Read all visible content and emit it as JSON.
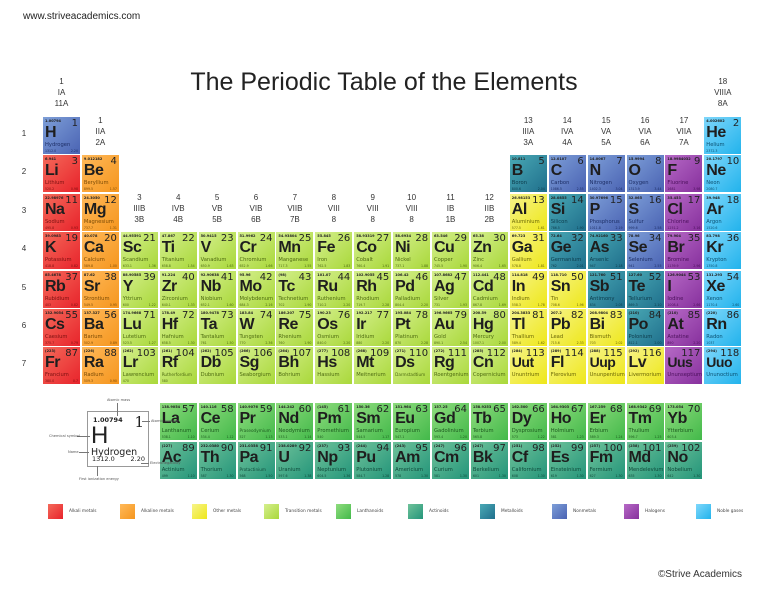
{
  "site": "www.striveacademics.com",
  "title": "The Periodic Table of the Elements",
  "copyright": "©Strive Academics",
  "groups": [
    {
      "col": 1,
      "row": 0,
      "lines": [
        "1",
        "IA",
        "11A"
      ]
    },
    {
      "col": 2,
      "row": 1,
      "lines": [
        "1",
        "IIA",
        "2A"
      ]
    },
    {
      "col": 3,
      "row": 3,
      "lines": [
        "3",
        "IIIB",
        "3B"
      ]
    },
    {
      "col": 4,
      "row": 3,
      "lines": [
        "4",
        "IVB",
        "4B"
      ]
    },
    {
      "col": 5,
      "row": 3,
      "lines": [
        "5",
        "VB",
        "5B"
      ]
    },
    {
      "col": 6,
      "row": 3,
      "lines": [
        "6",
        "VIB",
        "6B"
      ]
    },
    {
      "col": 7,
      "row": 3,
      "lines": [
        "7",
        "VIIB",
        "7B"
      ]
    },
    {
      "col": 8,
      "row": 3,
      "lines": [
        "8",
        "VIII",
        "8"
      ]
    },
    {
      "col": 9,
      "row": 3,
      "lines": [
        "9",
        "VIII",
        "8"
      ]
    },
    {
      "col": 10,
      "row": 3,
      "lines": [
        "10",
        "VIII",
        "8"
      ]
    },
    {
      "col": 11,
      "row": 3,
      "lines": [
        "11",
        "IB",
        "1B"
      ]
    },
    {
      "col": 12,
      "row": 3,
      "lines": [
        "12",
        "IIB",
        "2B"
      ]
    },
    {
      "col": 13,
      "row": 1,
      "lines": [
        "13",
        "IIIA",
        "3A"
      ]
    },
    {
      "col": 14,
      "row": 1,
      "lines": [
        "14",
        "IVA",
        "4A"
      ]
    },
    {
      "col": 15,
      "row": 1,
      "lines": [
        "15",
        "VA",
        "5A"
      ]
    },
    {
      "col": 16,
      "row": 1,
      "lines": [
        "16",
        "VIA",
        "6A"
      ]
    },
    {
      "col": 17,
      "row": 1,
      "lines": [
        "17",
        "VIIA",
        "7A"
      ]
    },
    {
      "col": 18,
      "row": 0,
      "lines": [
        "18",
        "VIIIA",
        "8A"
      ]
    }
  ],
  "periods": [
    "1",
    "2",
    "3",
    "4",
    "5",
    "6",
    "7"
  ],
  "key": {
    "mass": "1.00794",
    "number": "1",
    "symbol": "H",
    "name": "Hydrogen",
    "ionization": "1312.0",
    "electronegativity": "2.20",
    "labels": {
      "mass": "Atomic mass",
      "number": "Atomic number",
      "symbol": "Chemical symbol",
      "name": "Name",
      "electronegativity": "Electronegativity",
      "ionization": "First ionization energy"
    }
  },
  "legend": [
    {
      "cat": "alkali",
      "label": "Alkali metals"
    },
    {
      "cat": "alkaline",
      "label": "Alkaline metals"
    },
    {
      "cat": "other",
      "label": "Other metals"
    },
    {
      "cat": "transition",
      "label": "Transition metals"
    },
    {
      "cat": "lanth",
      "label": "Lanthanoids"
    },
    {
      "cat": "actin",
      "label": "Actinoids"
    },
    {
      "cat": "metalloid",
      "label": "Metalloids"
    },
    {
      "cat": "nonmetal",
      "label": "Nonmetals"
    },
    {
      "cat": "halogen",
      "label": "Halogens"
    },
    {
      "cat": "noble",
      "label": "Noble gases"
    }
  ],
  "elements": [
    [
      "H",
      "Hydrogen",
      "1.00794",
      1,
      1,
      1,
      "nonmetal",
      "1312.0",
      "2.20"
    ],
    [
      "He",
      "Helium",
      "4.002602",
      2,
      18,
      1,
      "noble",
      "2372.3",
      ""
    ],
    [
      "Li",
      "Lithium",
      "6.941",
      3,
      1,
      2,
      "alkali",
      "520.2",
      "0.98"
    ],
    [
      "Be",
      "Beryllium",
      "9.012182",
      4,
      2,
      2,
      "alkaline",
      "899.5",
      "1.57"
    ],
    [
      "B",
      "Boron",
      "10.811",
      5,
      13,
      2,
      "metalloid",
      "800.6",
      "2.04"
    ],
    [
      "C",
      "Carbon",
      "12.0107",
      6,
      14,
      2,
      "nonmetal",
      "1086.5",
      "2.55"
    ],
    [
      "N",
      "Nitrogen",
      "14.0067",
      7,
      15,
      2,
      "nonmetal",
      "1402.3",
      "3.04"
    ],
    [
      "O",
      "Oxygen",
      "15.9994",
      8,
      16,
      2,
      "nonmetal",
      "1313.9",
      "3.44"
    ],
    [
      "F",
      "Fluorine",
      "18.9984032",
      9,
      17,
      2,
      "halogen",
      "1681",
      "3.98"
    ],
    [
      "Ne",
      "Neon",
      "20.1797",
      10,
      18,
      2,
      "noble",
      "2080.7",
      ""
    ],
    [
      "Na",
      "Sodium",
      "22.98976",
      11,
      1,
      3,
      "alkali",
      "495.8",
      "0.93"
    ],
    [
      "Mg",
      "Magnesium",
      "24.3050",
      12,
      2,
      3,
      "alkaline",
      "737.7",
      "1.31"
    ],
    [
      "Al",
      "Aluminium",
      "26.98153",
      13,
      13,
      3,
      "other",
      "577.5",
      "1.61"
    ],
    [
      "Si",
      "Silicon",
      "28.0855",
      14,
      14,
      3,
      "metalloid",
      "786.5",
      "1.90"
    ],
    [
      "P",
      "Phosphorus",
      "30.97696",
      15,
      15,
      3,
      "nonmetal",
      "1011.8",
      "2.19"
    ],
    [
      "S",
      "Sulfur",
      "32.065",
      16,
      16,
      3,
      "nonmetal",
      "999.6",
      "2.58"
    ],
    [
      "Cl",
      "Chlorine",
      "35.453",
      17,
      17,
      3,
      "halogen",
      "1251.2",
      "3.16"
    ],
    [
      "Ar",
      "Argon",
      "39.948",
      18,
      18,
      3,
      "noble",
      "1520.6",
      ""
    ],
    [
      "K",
      "Potassium",
      "39.0983",
      19,
      1,
      4,
      "alkali",
      "418.8",
      "0.82"
    ],
    [
      "Ca",
      "Calcium",
      "40.078",
      20,
      2,
      4,
      "alkaline",
      "589.8",
      "1.00"
    ],
    [
      "Sc",
      "Scandium",
      "44.95591",
      21,
      3,
      4,
      "transition",
      "633.1",
      "1.36"
    ],
    [
      "Ti",
      "Titanium",
      "47.867",
      22,
      4,
      4,
      "transition",
      "658.8",
      "1.54"
    ],
    [
      "V",
      "Vanadium",
      "50.9415",
      23,
      5,
      4,
      "transition",
      "650.9",
      "1.63"
    ],
    [
      "Cr",
      "Chromium",
      "51.9962",
      24,
      6,
      4,
      "transition",
      "652.9",
      "1.66"
    ],
    [
      "Mn",
      "Manganese",
      "54.93804",
      25,
      7,
      4,
      "transition",
      "717.3",
      "1.55"
    ],
    [
      "Fe",
      "Iron",
      "55.845",
      26,
      8,
      4,
      "transition",
      "762.5",
      "1.83"
    ],
    [
      "Co",
      "Cobalt",
      "58.93319",
      27,
      9,
      4,
      "transition",
      "760.4",
      "1.91"
    ],
    [
      "Ni",
      "Nickel",
      "58.6934",
      28,
      10,
      4,
      "transition",
      "737.1",
      "1.88"
    ],
    [
      "Cu",
      "Copper",
      "63.546",
      29,
      11,
      4,
      "transition",
      "745.5",
      "1.90"
    ],
    [
      "Zn",
      "Zinc",
      "65.38",
      30,
      12,
      4,
      "transition",
      "906.4",
      "1.65"
    ],
    [
      "Ga",
      "Gallium",
      "69.723",
      31,
      13,
      4,
      "other",
      "578.8",
      "1.81"
    ],
    [
      "Ge",
      "Germanium",
      "72.64",
      32,
      14,
      4,
      "metalloid",
      "762",
      "2.01"
    ],
    [
      "As",
      "Arsenic",
      "74.92160",
      33,
      15,
      4,
      "metalloid",
      "947",
      "2.18"
    ],
    [
      "Se",
      "Selenium",
      "78.96",
      34,
      16,
      4,
      "nonmetal",
      "941",
      "2.55"
    ],
    [
      "Br",
      "Bromine",
      "79.904",
      35,
      17,
      4,
      "halogen",
      "1139.9",
      "2.96"
    ],
    [
      "Kr",
      "Krypton",
      "83.798",
      36,
      18,
      4,
      "noble",
      "1350.8",
      ""
    ],
    [
      "Rb",
      "Rubidium",
      "85.4678",
      37,
      1,
      5,
      "alkali",
      "403",
      "0.82"
    ],
    [
      "Sr",
      "Strontium",
      "87.62",
      38,
      2,
      5,
      "alkaline",
      "549.5",
      "0.95"
    ],
    [
      "Y",
      "Yttrium",
      "88.90585",
      39,
      3,
      5,
      "transition",
      "600",
      "1.22"
    ],
    [
      "Zr",
      "Zirconium",
      "91.224",
      40,
      4,
      5,
      "transition",
      "640.1",
      "1.33"
    ],
    [
      "Nb",
      "Niobium",
      "92.90638",
      41,
      5,
      5,
      "transition",
      "652.1",
      "1.60"
    ],
    [
      "Mo",
      "Molybdenum",
      "95.96",
      42,
      6,
      5,
      "transition",
      "684.3",
      "2.16"
    ],
    [
      "Tc",
      "Technetium",
      "(98)",
      43,
      7,
      5,
      "transition",
      "702",
      "1.90"
    ],
    [
      "Ru",
      "Ruthenium",
      "101.07",
      44,
      8,
      5,
      "transition",
      "710.2",
      "2.20"
    ],
    [
      "Rh",
      "Rhodium",
      "102.9055",
      45,
      9,
      5,
      "transition",
      "719.7",
      "2.28"
    ],
    [
      "Pd",
      "Palladium",
      "106.42",
      46,
      10,
      5,
      "transition",
      "804.4",
      "2.20"
    ],
    [
      "Ag",
      "Silver",
      "107.8682",
      47,
      11,
      5,
      "transition",
      "731",
      "1.93"
    ],
    [
      "Cd",
      "Cadmium",
      "112.441",
      48,
      12,
      5,
      "transition",
      "867.8",
      "1.69"
    ],
    [
      "In",
      "Indium",
      "114.818",
      49,
      13,
      5,
      "other",
      "558.3",
      "1.78"
    ],
    [
      "Sn",
      "Tin",
      "118.710",
      50,
      14,
      5,
      "other",
      "708.6",
      "1.96"
    ],
    [
      "Sb",
      "Antimony",
      "121.760",
      51,
      15,
      5,
      "metalloid",
      "834",
      "2.05"
    ],
    [
      "Te",
      "Tellurium",
      "127.60",
      52,
      16,
      5,
      "metalloid",
      "869.3",
      "2.10"
    ],
    [
      "I",
      "Iodine",
      "126.9044",
      53,
      17,
      5,
      "halogen",
      "1008.4",
      "2.66"
    ],
    [
      "Xe",
      "Xenon",
      "131.293",
      54,
      18,
      5,
      "noble",
      "1170.4",
      "2.60"
    ],
    [
      "Cs",
      "Caesium",
      "132.9054",
      55,
      1,
      6,
      "alkali",
      "375.7",
      "0.79"
    ],
    [
      "Ba",
      "Barium",
      "137.327",
      56,
      2,
      6,
      "alkaline",
      "502.9",
      "0.89"
    ],
    [
      "Lu",
      "Lutetium",
      "174.9668",
      71,
      3,
      6,
      "transition",
      "523.5",
      "1.27"
    ],
    [
      "Hf",
      "Hafnium",
      "178.49",
      72,
      4,
      6,
      "transition",
      "658.5",
      "1.30"
    ],
    [
      "Ta",
      "Tantalum",
      "180.9478",
      73,
      5,
      6,
      "transition",
      "761",
      "1.50"
    ],
    [
      "W",
      "Tungsten",
      "183.84",
      74,
      6,
      6,
      "transition",
      "770",
      "2.36"
    ],
    [
      "Re",
      "Rhenium",
      "186.207",
      75,
      7,
      6,
      "transition",
      "760",
      "1.90"
    ],
    [
      "Os",
      "Osmium",
      "190.23",
      76,
      8,
      6,
      "transition",
      "840.0",
      "2.20"
    ],
    [
      "Ir",
      "Iridium",
      "192.217",
      77,
      9,
      6,
      "transition",
      "880",
      "2.20"
    ],
    [
      "Pt",
      "Platinum",
      "195.084",
      78,
      10,
      6,
      "transition",
      "870",
      "2.28"
    ],
    [
      "Au",
      "Gold",
      "196.9665",
      79,
      11,
      6,
      "transition",
      "890.1",
      "2.54"
    ],
    [
      "Hg",
      "Mercury",
      "200.59",
      80,
      12,
      6,
      "transition",
      "1007.1",
      "2.00"
    ],
    [
      "Tl",
      "Thallium",
      "204.3833",
      81,
      13,
      6,
      "other",
      "589.4",
      "1.62"
    ],
    [
      "Pb",
      "Lead",
      "207.2",
      82,
      14,
      6,
      "other",
      "715.6",
      "2.33"
    ],
    [
      "Bi",
      "Bismuth",
      "208.9804",
      83,
      15,
      6,
      "other",
      "703",
      "2.02"
    ],
    [
      "Po",
      "Polonium",
      "(210)",
      84,
      16,
      6,
      "metalloid",
      "812.1",
      "2.00"
    ],
    [
      "At",
      "Astatine",
      "(210)",
      85,
      17,
      6,
      "halogen",
      "890",
      "2.20"
    ],
    [
      "Rn",
      "Radon",
      "(220)",
      86,
      18,
      6,
      "noble",
      "1037",
      ""
    ],
    [
      "Fr",
      "Francium",
      "(223)",
      87,
      1,
      7,
      "alkali",
      "380.0",
      "0.7"
    ],
    [
      "Ra",
      "Radium",
      "(226)",
      88,
      2,
      7,
      "alkaline",
      "509.3",
      "0.90"
    ],
    [
      "Lr",
      "Lawrencium",
      "(262)",
      103,
      3,
      7,
      "transition",
      "470",
      ""
    ],
    [
      "Rf",
      "Rutherfordium",
      "(261)",
      104,
      4,
      7,
      "transition",
      "580",
      ""
    ],
    [
      "Db",
      "Dubnium",
      "(262)",
      105,
      5,
      7,
      "transition",
      "",
      ""
    ],
    [
      "Sg",
      "Seaborgium",
      "(266)",
      106,
      6,
      7,
      "transition",
      "",
      ""
    ],
    [
      "Bh",
      "Bohrium",
      "(264)",
      107,
      7,
      7,
      "transition",
      "",
      ""
    ],
    [
      "Hs",
      "Hassium",
      "(277)",
      108,
      8,
      7,
      "transition",
      "",
      ""
    ],
    [
      "Mt",
      "Meitnerium",
      "(268)",
      109,
      9,
      7,
      "transition",
      "",
      ""
    ],
    [
      "Ds",
      "Darmstadtium",
      "(271)",
      110,
      10,
      7,
      "transition",
      "",
      ""
    ],
    [
      "Rg",
      "Roentgenium",
      "(272)",
      111,
      11,
      7,
      "transition",
      "",
      ""
    ],
    [
      "Cn",
      "Copernicium",
      "(285)",
      112,
      12,
      7,
      "transition",
      "",
      ""
    ],
    [
      "Uut",
      "Ununtrium",
      "(284)",
      113,
      13,
      7,
      "other",
      "",
      ""
    ],
    [
      "Fl",
      "Flerovium",
      "(289)",
      114,
      14,
      7,
      "other",
      "",
      ""
    ],
    [
      "Uup",
      "Ununpentium",
      "(288)",
      115,
      15,
      7,
      "other",
      "",
      ""
    ],
    [
      "Lv",
      "Livermorium",
      "(292)",
      116,
      16,
      7,
      "other",
      "",
      ""
    ],
    [
      "Uus",
      "Ununseptium",
      "",
      117,
      17,
      7,
      "halogen",
      "",
      ""
    ],
    [
      "Uuo",
      "Ununoctium",
      "(294)",
      118,
      18,
      7,
      "noble",
      "",
      ""
    ],
    [
      "La",
      "Lanthanum",
      "138.9054",
      57,
      4,
      9,
      "lanth",
      "538.1",
      "1.10"
    ],
    [
      "Ce",
      "Cerium",
      "140.116",
      58,
      5,
      9,
      "lanth",
      "534.4",
      "1.12"
    ],
    [
      "Pr",
      "Praseodymium",
      "140.9076",
      59,
      6,
      9,
      "lanth",
      "527",
      "1.13"
    ],
    [
      "Nd",
      "Neodymium",
      "144.242",
      60,
      7,
      9,
      "lanth",
      "533.1",
      "1.14"
    ],
    [
      "Pm",
      "Promethium",
      "(145)",
      61,
      8,
      9,
      "lanth",
      "540",
      ""
    ],
    [
      "Sm",
      "Samarium",
      "150.36",
      62,
      9,
      9,
      "lanth",
      "544.5",
      "1.17"
    ],
    [
      "Eu",
      "Europium",
      "151.964",
      63,
      10,
      9,
      "lanth",
      "547.1",
      ""
    ],
    [
      "Gd",
      "Gadolinium",
      "157.25",
      64,
      11,
      9,
      "lanth",
      "593.4",
      "1.20"
    ],
    [
      "Tb",
      "Terbium",
      "158.9253",
      65,
      12,
      9,
      "lanth",
      "565.8",
      ""
    ],
    [
      "Dy",
      "Dysprosium",
      "162.500",
      66,
      13,
      9,
      "lanth",
      "573",
      "1.22"
    ],
    [
      "Ho",
      "Holmium",
      "164.9303",
      67,
      14,
      9,
      "lanth",
      "581",
      "1.23"
    ],
    [
      "Er",
      "Erbium",
      "167.259",
      68,
      15,
      9,
      "lanth",
      "589.3",
      "1.24"
    ],
    [
      "Tm",
      "Thulium",
      "168.9342",
      69,
      16,
      9,
      "lanth",
      "596.7",
      "1.25"
    ],
    [
      "Yb",
      "Ytterbium",
      "173.054",
      70,
      17,
      9,
      "lanth",
      "603.4",
      ""
    ],
    [
      "Ac",
      "Actinium",
      "(227)",
      89,
      4,
      10,
      "actin",
      "499",
      "1.10"
    ],
    [
      "Th",
      "Thorium",
      "232.0380",
      90,
      5,
      10,
      "actin",
      "587",
      "1.30"
    ],
    [
      "Pa",
      "Protactinium",
      "231.0358",
      91,
      6,
      10,
      "actin",
      "568",
      "1.50"
    ],
    [
      "U",
      "Uranium",
      "238.0289",
      92,
      7,
      10,
      "actin",
      "597.6",
      "1.38"
    ],
    [
      "Np",
      "Neptunium",
      "(237)",
      93,
      8,
      10,
      "actin",
      "604.5",
      "1.36"
    ],
    [
      "Pu",
      "Plutonium",
      "(244)",
      94,
      9,
      10,
      "actin",
      "584.7",
      "1.28"
    ],
    [
      "Am",
      "Americium",
      "(243)",
      95,
      10,
      10,
      "actin",
      "578",
      "1.30"
    ],
    [
      "Cm",
      "Curium",
      "(247)",
      96,
      11,
      10,
      "actin",
      "581",
      "1.30"
    ],
    [
      "Bk",
      "Berkelium",
      "(247)",
      97,
      12,
      10,
      "actin",
      "601",
      "1.30"
    ],
    [
      "Cf",
      "Californium",
      "(251)",
      98,
      13,
      10,
      "actin",
      "608",
      "1.30"
    ],
    [
      "Es",
      "Einsteinium",
      "(252)",
      99,
      14,
      10,
      "actin",
      "619",
      "1.30"
    ],
    [
      "Fm",
      "Fermium",
      "(257)",
      100,
      15,
      10,
      "actin",
      "627",
      "1.30"
    ],
    [
      "Md",
      "Mendelevium",
      "(258)",
      101,
      16,
      10,
      "actin",
      "635",
      "1.30"
    ],
    [
      "No",
      "Nobelium",
      "(259)",
      102,
      17,
      10,
      "actin",
      "642",
      "1.30"
    ]
  ]
}
